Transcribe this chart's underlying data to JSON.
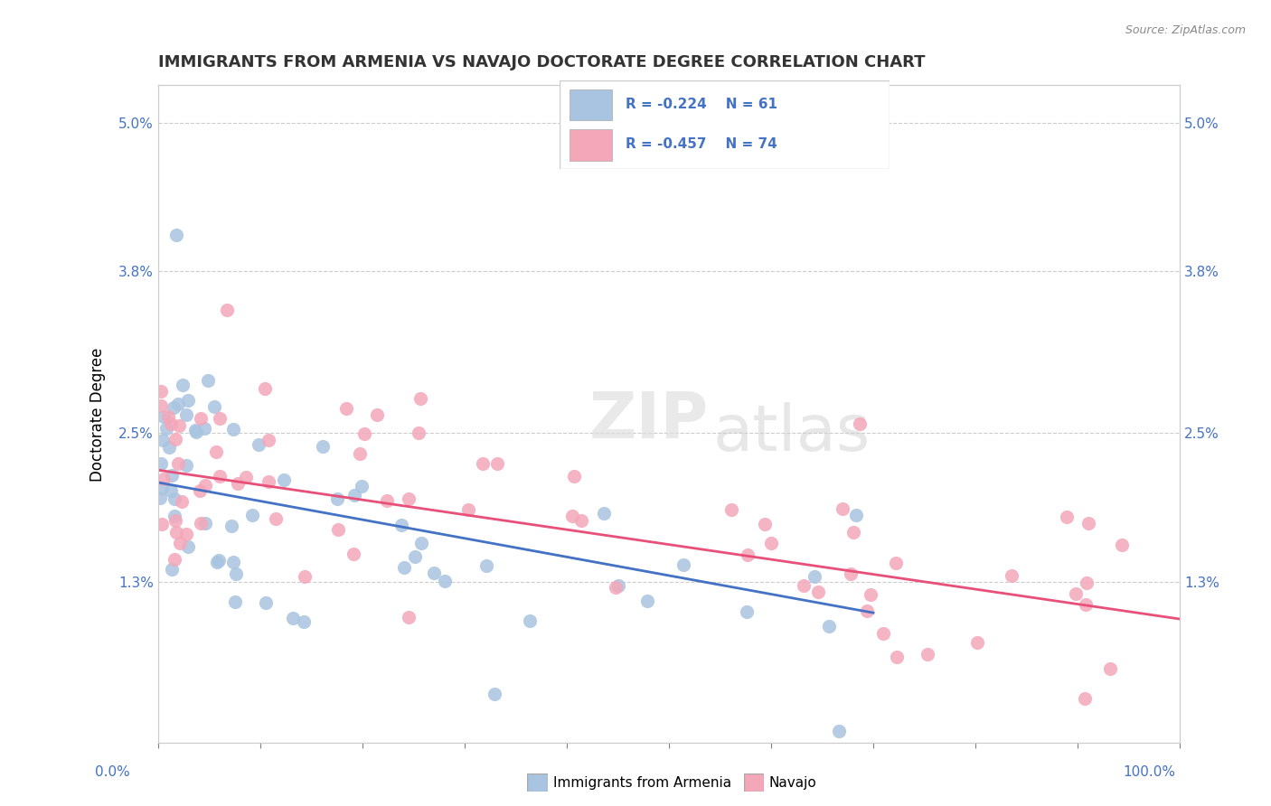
{
  "title": "IMMIGRANTS FROM ARMENIA VS NAVAJO DOCTORATE DEGREE CORRELATION CHART",
  "source": "Source: ZipAtlas.com",
  "ylabel": "Doctorate Degree",
  "legend_label1": "Immigrants from Armenia",
  "legend_label2": "Navajo",
  "legend_r1": "R = -0.224",
  "legend_n1": "N = 61",
  "legend_r2": "R = -0.457",
  "legend_n2": "N = 74",
  "ytick_labels": [
    "",
    "1.3%",
    "2.5%",
    "3.8%",
    "5.0%"
  ],
  "ytick_values": [
    0,
    0.013,
    0.025,
    0.038,
    0.05
  ],
  "color_blue": "#a8c4e0",
  "color_pink": "#f4a7b9",
  "line_blue": "#4472c4",
  "line_pink": "#e8507a",
  "line_dash": "#b0b0b0",
  "tick_color": "#4472c4"
}
